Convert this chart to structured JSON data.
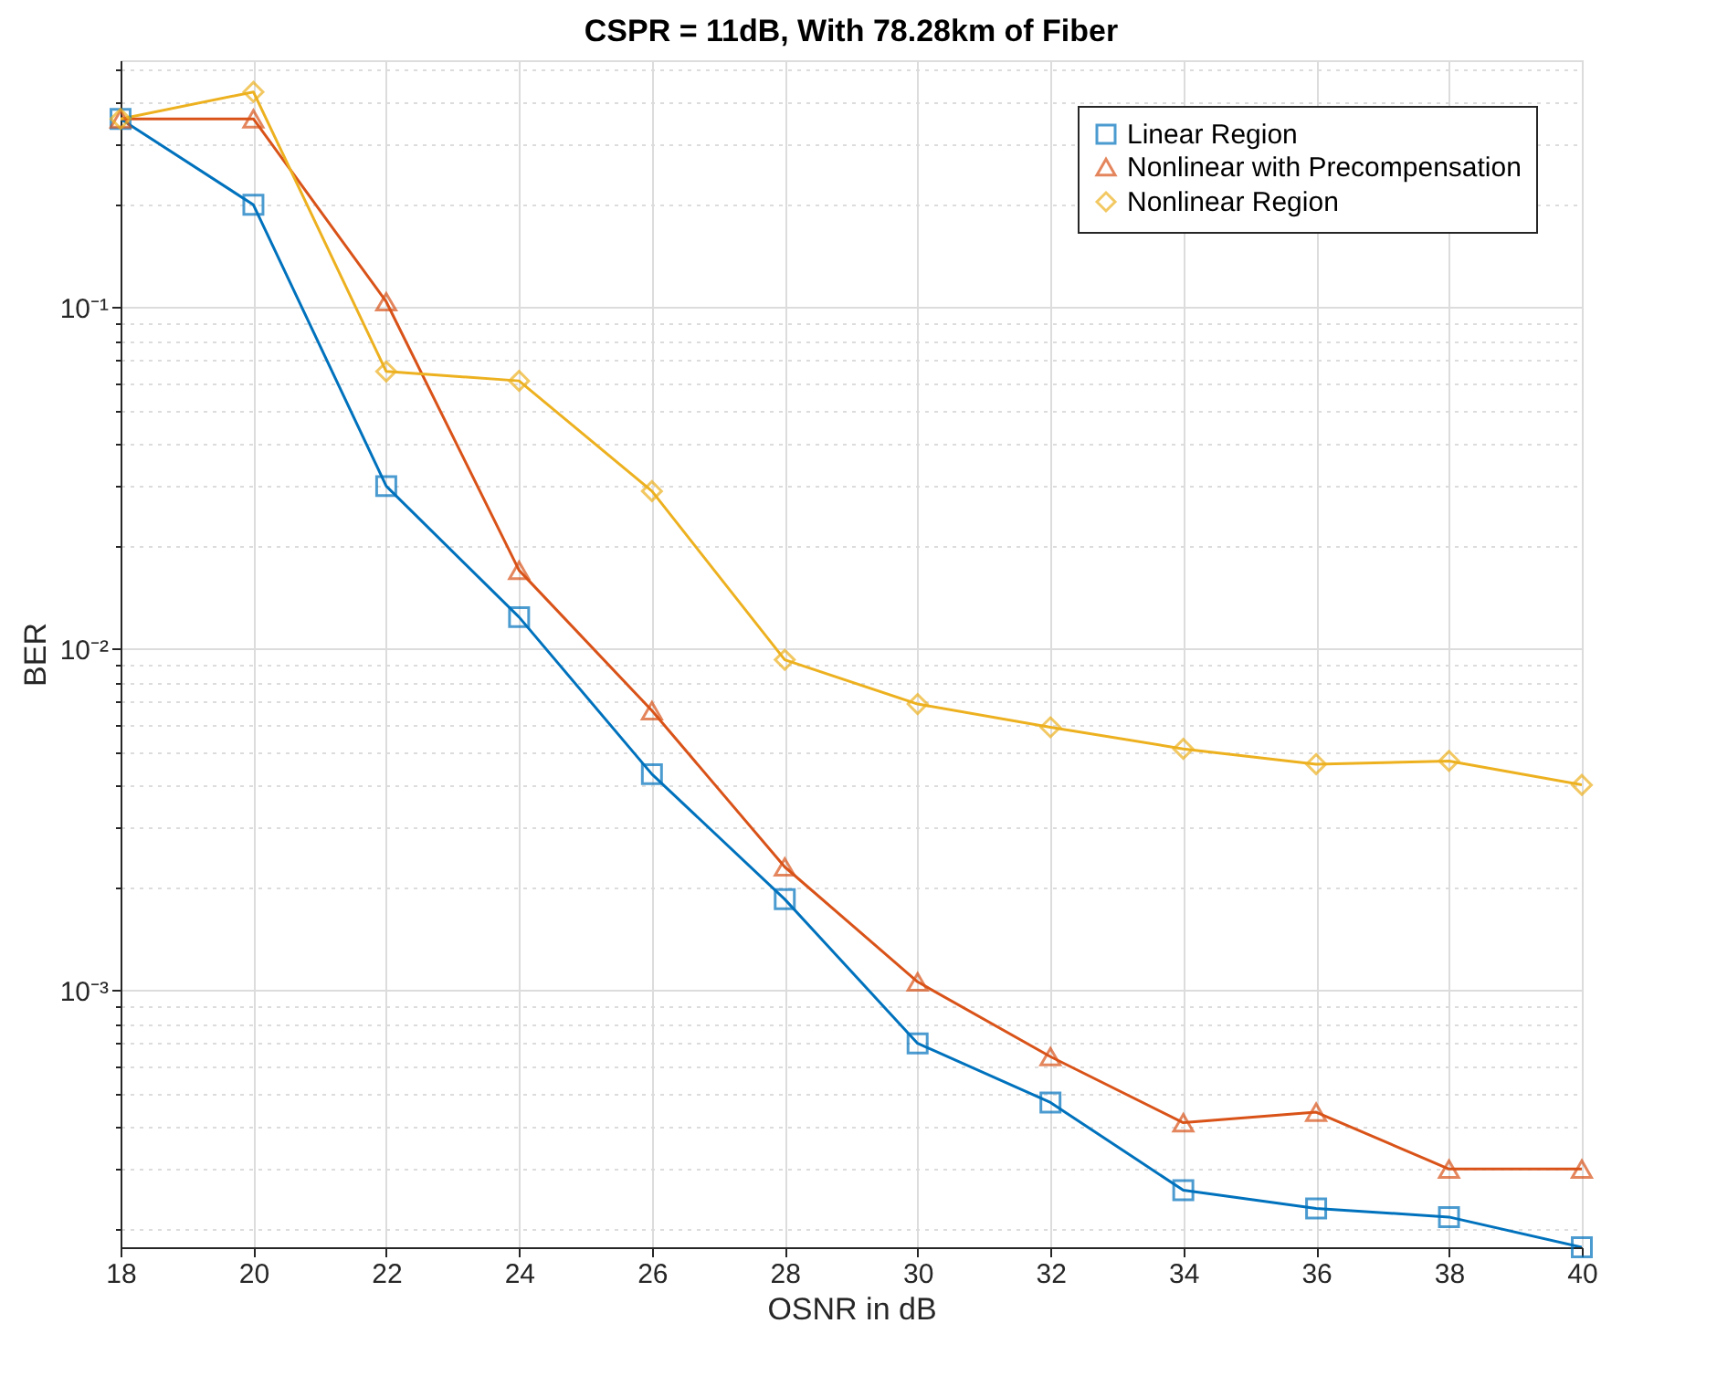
{
  "chart_data": {
    "type": "line",
    "title": "CSPR = 11dB, With 78.28km of Fiber",
    "xlabel": "OSNR in dB",
    "ylabel": "BER",
    "x": [
      18,
      20,
      22,
      24,
      26,
      28,
      30,
      32,
      34,
      36,
      38,
      40
    ],
    "series": [
      {
        "name": "Linear Region",
        "color": "#0072bd",
        "marker": "square",
        "values": [
          0.357,
          0.2,
          0.03,
          0.0124,
          0.0043,
          0.00185,
          0.0007,
          0.00047,
          0.00026,
          0.00023,
          0.000217,
          0.000177
        ]
      },
      {
        "name": "Nonlinear with Precompensation",
        "color": "#d95319",
        "marker": "triangle",
        "values": [
          0.357,
          0.357,
          0.104,
          0.017,
          0.0066,
          0.0023,
          0.00106,
          0.00064,
          0.00041,
          0.00044,
          0.0003,
          0.0003
        ]
      },
      {
        "name": "Nonlinear Region",
        "color": "#edb120",
        "marker": "diamond",
        "values": [
          0.357,
          0.428,
          0.065,
          0.061,
          0.029,
          0.0093,
          0.0069,
          0.0059,
          0.0051,
          0.0046,
          0.0047,
          0.004
        ]
      }
    ],
    "xlim": [
      18,
      40
    ],
    "xticks": [
      18,
      20,
      22,
      24,
      26,
      28,
      30,
      32,
      34,
      36,
      38,
      40
    ],
    "ylim": [
      0.000177,
      0.53
    ],
    "log": true,
    "yticks": [
      {
        "value": 0.0002,
        "label": null
      },
      {
        "value": 0.0003,
        "label": null
      },
      {
        "value": 0.0004,
        "label": null
      },
      {
        "value": 0.0005,
        "label": null
      },
      {
        "value": 0.0006,
        "label": null
      },
      {
        "value": 0.0007,
        "label": null
      },
      {
        "value": 0.0008,
        "label": null
      },
      {
        "value": 0.0009,
        "label": null
      },
      {
        "value": 0.001,
        "label": "10⁻³"
      },
      {
        "value": 0.002,
        "label": null
      },
      {
        "value": 0.003,
        "label": null
      },
      {
        "value": 0.004,
        "label": null
      },
      {
        "value": 0.005,
        "label": null
      },
      {
        "value": 0.006,
        "label": null
      },
      {
        "value": 0.007,
        "label": null
      },
      {
        "value": 0.008,
        "label": null
      },
      {
        "value": 0.009,
        "label": null
      },
      {
        "value": 0.01,
        "label": "10⁻²"
      },
      {
        "value": 0.02,
        "label": null
      },
      {
        "value": 0.03,
        "label": null
      },
      {
        "value": 0.04,
        "label": null
      },
      {
        "value": 0.05,
        "label": null
      },
      {
        "value": 0.06,
        "label": null
      },
      {
        "value": 0.07,
        "label": null
      },
      {
        "value": 0.08,
        "label": null
      },
      {
        "value": 0.09,
        "label": null
      },
      {
        "value": 0.1,
        "label": "10⁻¹"
      },
      {
        "value": 0.2,
        "label": null
      },
      {
        "value": 0.3,
        "label": null
      },
      {
        "value": 0.4,
        "label": null
      },
      {
        "value": 0.5,
        "label": null
      }
    ],
    "grid": true,
    "legend": "top right",
    "line_style": "solid"
  }
}
